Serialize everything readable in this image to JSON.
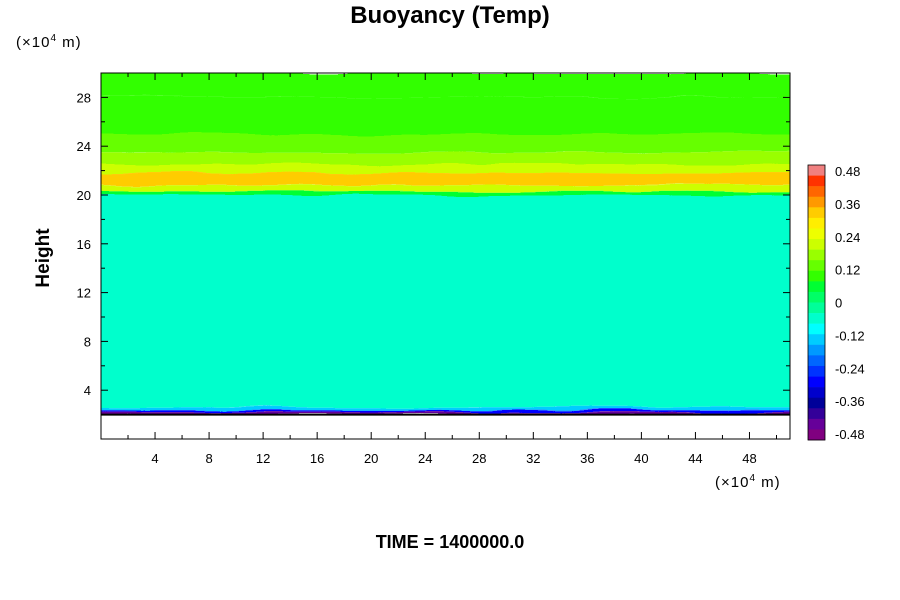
{
  "chart_data": {
    "type": "heatmap",
    "title": "Buoyancy (Temp)",
    "ylabel": "Height",
    "x_unit": {
      "prefix": "(×10",
      "exponent": "4",
      "suffix": " m)"
    },
    "y_unit": {
      "prefix": "(×10",
      "exponent": "4",
      "suffix": " m)"
    },
    "xlim": [
      0,
      51
    ],
    "ylim": [
      0,
      30
    ],
    "x_ticks": [
      4,
      8,
      12,
      16,
      20,
      24,
      28,
      32,
      36,
      40,
      44,
      48
    ],
    "y_ticks": [
      4,
      8,
      12,
      16,
      20,
      24,
      28
    ],
    "field_y_bottom": 2,
    "colorbar": {
      "range": [
        -0.48,
        0.48
      ],
      "tick_values": [
        0.48,
        0.36,
        0.24,
        0.12,
        0,
        -0.12,
        -0.24,
        -0.36,
        -0.48
      ],
      "tick_labels": [
        "0.48",
        "0.36",
        "0.24",
        "0.12",
        "0",
        "-0.12",
        "-0.24",
        "-0.36",
        "-0.48"
      ],
      "colors": [
        "#f08080",
        "#ff3300",
        "#ff6600",
        "#ff9900",
        "#ffcc00",
        "#ffee00",
        "#eeff00",
        "#ccff00",
        "#99ff00",
        "#66ff00",
        "#33ff00",
        "#00ff33",
        "#00ff66",
        "#00ff99",
        "#00ffcc",
        "#00ffff",
        "#00ccff",
        "#0099ff",
        "#0066ff",
        "#0033ff",
        "#0000ff",
        "#0000cc",
        "#000099",
        "#330099",
        "#660099",
        "#800080"
      ]
    },
    "layers": [
      {
        "y0": 28,
        "y1": 30,
        "value": 0.1
      },
      {
        "y0": 25,
        "y1": 28,
        "value": 0.1
      },
      {
        "y0": 23.5,
        "y1": 25,
        "value": 0.12
      },
      {
        "y0": 22.5,
        "y1": 23.5,
        "value": 0.18
      },
      {
        "y0": 21.8,
        "y1": 22.5,
        "value": 0.22
      },
      {
        "y0": 20.8,
        "y1": 21.8,
        "value": 0.3
      },
      {
        "y0": 20.3,
        "y1": 20.8,
        "value": 0.22
      },
      {
        "y0": 20,
        "y1": 20.3,
        "value": 0.06
      },
      {
        "y0": 2.6,
        "y1": 20,
        "value": -0.07
      },
      {
        "y0": 2.35,
        "y1": 2.6,
        "value": -0.14
      },
      {
        "y0": 2.2,
        "y1": 2.35,
        "value": -0.26
      },
      {
        "y0": 2.0,
        "y1": 2.2,
        "value": -0.42
      }
    ],
    "time_label": "TIME = 1400000.0"
  }
}
